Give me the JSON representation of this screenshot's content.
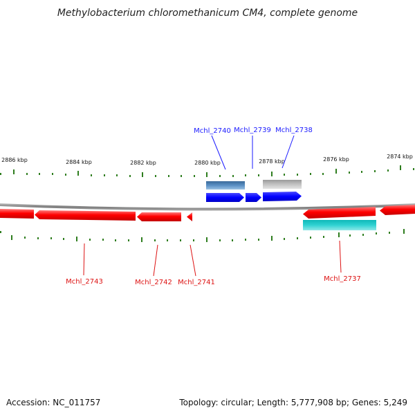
{
  "title": "Methylobacterium chloromethanicum CM4, complete genome",
  "footer": {
    "accession": "Accession: NC_011757",
    "summary": "Topology: circular; Length: 5,777,908 bp; Genes: 5,249"
  },
  "colors": {
    "background": "#ffffff",
    "backbone": "#8a8a8a",
    "ticks": "#2e7d1e",
    "forward_gene": "#1010ff",
    "reverse_gene": "#ff0000",
    "label_forward": "#1a1aff",
    "label_reverse": "#dd1111",
    "feature_steelblue": "#4a7fb5",
    "feature_gray": "#b9b9b9",
    "feature_cyan": "#2ac9c9"
  },
  "ruler": {
    "labels": [
      "2886 kbp",
      "2884 kbp",
      "2882 kbp",
      "2880 kbp",
      "2878 kbp",
      "2876 kbp",
      "2874 kbp"
    ]
  },
  "genes": [
    {
      "name": "Mchl_2740",
      "strand": "forward"
    },
    {
      "name": "Mchl_2739",
      "strand": "forward"
    },
    {
      "name": "Mchl_2738",
      "strand": "forward"
    },
    {
      "name": "Mchl_2743",
      "strand": "reverse"
    },
    {
      "name": "Mchl_2742",
      "strand": "reverse"
    },
    {
      "name": "Mchl_2741",
      "strand": "reverse"
    },
    {
      "name": "Mchl_2737",
      "strand": "reverse"
    }
  ]
}
